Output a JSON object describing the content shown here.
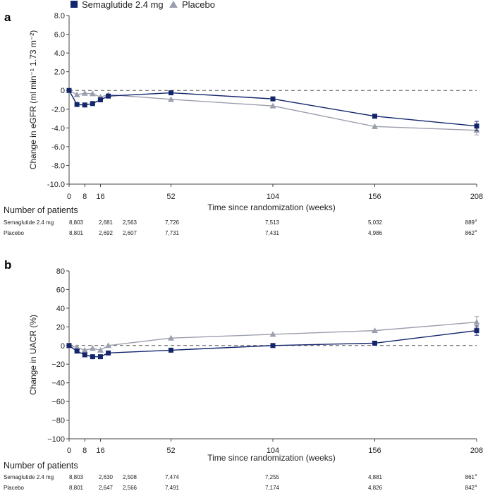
{
  "legend": [
    {
      "name": "Semaglutide 2.4 mg",
      "color": "#13256b",
      "marker": "square"
    },
    {
      "name": "Placebo",
      "color": "#9b9fad",
      "marker": "triangle"
    }
  ],
  "chart_data": [
    {
      "panel": "a",
      "type": "line",
      "ylabel": "Change in eGFR (ml min⁻¹ 1.73 m⁻²)",
      "xlabel": "Time since randomization (weeks)",
      "ylim": [
        -10,
        8
      ],
      "yticks": [
        "8.0",
        "6.0",
        "4.0",
        "2.0",
        "0",
        "-2.0",
        "-4.0",
        "-6.0",
        "-8.0",
        "-10.0"
      ],
      "ytick_values": [
        8,
        6,
        4,
        2,
        0,
        -2,
        -4,
        -6,
        -8,
        -10
      ],
      "xticks": [
        "0",
        "8",
        "16",
        "52",
        "104",
        "156",
        "208"
      ],
      "xtick_values": [
        0,
        8,
        16,
        52,
        104,
        156,
        208
      ],
      "reference_line": 0,
      "series": [
        {
          "name": "Semaglutide 2.4 mg",
          "x": [
            0,
            4,
            8,
            12,
            16,
            20,
            52,
            104,
            156,
            208
          ],
          "y": [
            0,
            -1.5,
            -1.55,
            -1.4,
            -1.0,
            -0.6,
            -0.25,
            -0.9,
            -2.75,
            -3.8
          ],
          "err": [
            0,
            0,
            0,
            0,
            0,
            0,
            0,
            0,
            0,
            0.5
          ]
        },
        {
          "name": "Placebo",
          "x": [
            0,
            4,
            8,
            12,
            16,
            20,
            52,
            104,
            156,
            208
          ],
          "y": [
            0,
            -0.45,
            -0.3,
            -0.35,
            -0.7,
            -0.45,
            -0.95,
            -1.65,
            -3.85,
            -4.25
          ],
          "err": [
            0,
            0,
            0,
            0,
            0,
            0,
            0,
            0,
            0,
            0.5
          ]
        }
      ],
      "patients_header": "Number of patients",
      "patients_rows": [
        {
          "label": "Semaglutide 2.4 mg",
          "values": [
            "8,803",
            "2,681",
            "2,563",
            "7,726",
            "7,513",
            "5,032",
            "889"
          ],
          "sup": "a"
        },
        {
          "label": "Placebo",
          "values": [
            "8,801",
            "2,692",
            "2,607",
            "7,731",
            "7,431",
            "4,986",
            "862"
          ],
          "sup": "a"
        }
      ]
    },
    {
      "panel": "b",
      "type": "line",
      "ylabel": "Change in UACR (%)",
      "xlabel": "Time since randomization (weeks)",
      "ylim": [
        -100,
        80
      ],
      "yticks": [
        "80",
        "60",
        "40",
        "20",
        "0",
        "−20",
        "−40",
        "−60",
        "−80",
        "−100"
      ],
      "ytick_values": [
        80,
        60,
        40,
        20,
        0,
        -20,
        -40,
        -60,
        -80,
        -100
      ],
      "xticks": [
        "0",
        "8",
        "16",
        "52",
        "104",
        "156",
        "208"
      ],
      "xtick_values": [
        0,
        8,
        16,
        52,
        104,
        156,
        208
      ],
      "reference_line": 0,
      "series": [
        {
          "name": "Semaglutide 2.4 mg",
          "x": [
            0,
            4,
            8,
            12,
            16,
            20,
            52,
            104,
            156,
            208
          ],
          "y": [
            0,
            -6,
            -10,
            -12,
            -12,
            -8,
            -5,
            0,
            2.5,
            16
          ],
          "err": [
            0,
            0,
            0,
            0,
            0,
            0,
            0,
            0,
            0,
            5
          ]
        },
        {
          "name": "Placebo",
          "x": [
            0,
            4,
            8,
            12,
            16,
            20,
            52,
            104,
            156,
            208
          ],
          "y": [
            0,
            -2,
            -5,
            -3,
            -5,
            0,
            8,
            12,
            16,
            25
          ],
          "err": [
            0,
            0,
            0,
            0,
            0,
            0,
            0,
            0,
            0,
            6
          ]
        }
      ],
      "patients_header": "Number of patients",
      "patients_rows": [
        {
          "label": "Semaglutide 2.4 mg",
          "values": [
            "8,803",
            "2,630",
            "2,508",
            "7,474",
            "7,255",
            "4,881",
            "861"
          ],
          "sup": "a"
        },
        {
          "label": "Placebo",
          "values": [
            "8,801",
            "2,647",
            "2,566",
            "7,491",
            "7,174",
            "4,826",
            "842"
          ],
          "sup": "a"
        }
      ]
    }
  ]
}
